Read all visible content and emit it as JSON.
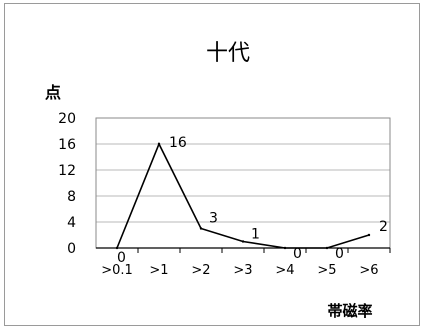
{
  "chart_data": {
    "type": "line",
    "title": "十代",
    "ylabel": "点",
    "xlabel": "帯磁率",
    "categories": [
      ">0.1",
      ">1",
      ">2",
      ">3",
      ">4",
      ">5",
      ">6"
    ],
    "values": [
      0,
      16,
      3,
      1,
      0,
      0,
      2
    ],
    "data_labels": [
      "0",
      "16",
      "3",
      "1",
      "0",
      "0",
      "2"
    ],
    "ylim": [
      0,
      20
    ],
    "yticks": [
      "0",
      "4",
      "8",
      "12",
      "16",
      "20"
    ],
    "grid": true,
    "line_color": "#000000",
    "grid_color": "#b8b8b8"
  }
}
